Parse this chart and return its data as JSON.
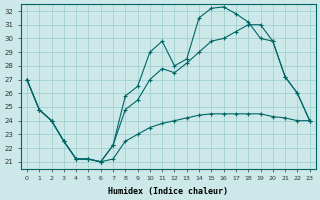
{
  "xlabel": "Humidex (Indice chaleur)",
  "bg_color": "#cce8e8",
  "line_color": "#006666",
  "grid_color": "#99cccc",
  "xlim": [
    -0.5,
    23.5
  ],
  "ylim": [
    20.5,
    32.5
  ],
  "yticks": [
    21,
    22,
    23,
    24,
    25,
    26,
    27,
    28,
    29,
    30,
    31,
    32
  ],
  "xticks": [
    0,
    1,
    2,
    3,
    4,
    5,
    6,
    7,
    8,
    9,
    10,
    11,
    12,
    13,
    14,
    15,
    16,
    17,
    18,
    19,
    20,
    21,
    22,
    23
  ],
  "line1_x": [
    0,
    1,
    2,
    3,
    4,
    5,
    6,
    7,
    8,
    9,
    10,
    11,
    12,
    13,
    14,
    15,
    16,
    17,
    18,
    19,
    20,
    21,
    22,
    23
  ],
  "line1_y": [
    27.0,
    24.8,
    24.0,
    22.5,
    21.2,
    21.2,
    21.0,
    22.2,
    25.8,
    26.5,
    29.0,
    29.8,
    28.0,
    28.5,
    31.5,
    32.2,
    32.3,
    31.8,
    31.2,
    30.0,
    29.8,
    27.2,
    26.0,
    24.0
  ],
  "line2_x": [
    0,
    1,
    2,
    3,
    4,
    5,
    6,
    7,
    8,
    9,
    10,
    11,
    12,
    13,
    14,
    15,
    16,
    17,
    18,
    19,
    20,
    21,
    22,
    23
  ],
  "line2_y": [
    27.0,
    24.8,
    24.0,
    22.5,
    21.2,
    21.2,
    21.0,
    22.2,
    24.8,
    25.5,
    27.0,
    27.8,
    27.5,
    28.2,
    29.0,
    29.8,
    30.0,
    30.5,
    31.0,
    31.0,
    29.8,
    27.2,
    26.0,
    24.0
  ],
  "line3_x": [
    0,
    1,
    2,
    3,
    4,
    5,
    6,
    7,
    8,
    9,
    10,
    11,
    12,
    13,
    14,
    15,
    16,
    17,
    18,
    19,
    20,
    21,
    22,
    23
  ],
  "line3_y": [
    27.0,
    24.8,
    24.0,
    22.5,
    21.2,
    21.2,
    21.0,
    21.2,
    22.5,
    23.0,
    23.5,
    23.8,
    24.0,
    24.2,
    24.4,
    24.5,
    24.5,
    24.5,
    24.5,
    24.5,
    24.3,
    24.2,
    24.0,
    24.0
  ]
}
